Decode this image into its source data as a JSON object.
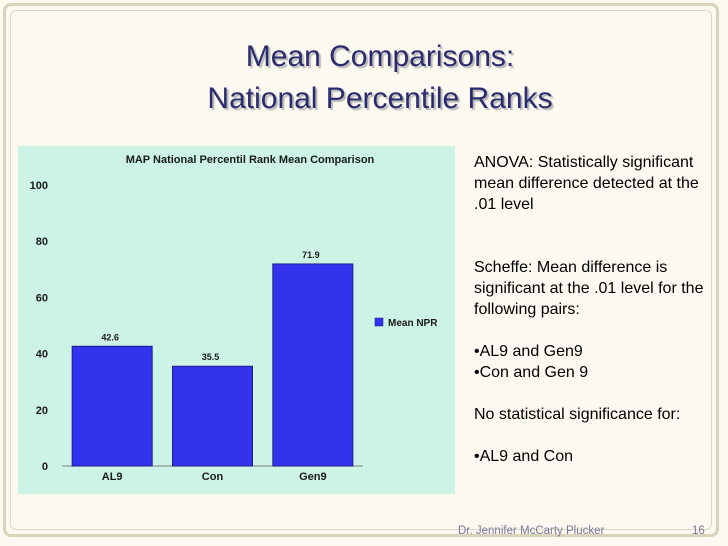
{
  "slide": {
    "title_line1": "Mean Comparisons:",
    "title_line2": "National Percentile Ranks",
    "notes": {
      "p1": "ANOVA: Statistically significant mean difference detected at the .01 level",
      "p2": "Scheffe: Mean difference is significant at the .01 level for the following pairs:",
      "p3": "•AL9 and Gen9",
      "p4": "•Con  and Gen 9",
      "p5": "No statistical significance for:",
      "p6": "•AL9 and Con"
    },
    "footer": {
      "author": "Dr. Jennifer McCarty Plucker",
      "page": "16"
    }
  },
  "chart_data": {
    "type": "bar",
    "title": "MAP National Percentil Rank Mean Comparison",
    "categories": [
      "AL9",
      "Con",
      "Gen9"
    ],
    "series": [
      {
        "name": "Mean NPR",
        "values": [
          42.6,
          35.5,
          71.9
        ],
        "labels": [
          "42.6",
          "35.5",
          "71.9"
        ]
      }
    ],
    "ylim": [
      0,
      100
    ],
    "yticks": [
      0,
      20,
      40,
      60,
      80,
      100
    ],
    "xlabel": "",
    "ylabel": "",
    "grid": false,
    "legend": "right",
    "colors": {
      "bar": "#3333ee",
      "bar_edge": "#1c1c8a",
      "panel": "#cdf3e6",
      "text": "#1a1a1a"
    }
  }
}
